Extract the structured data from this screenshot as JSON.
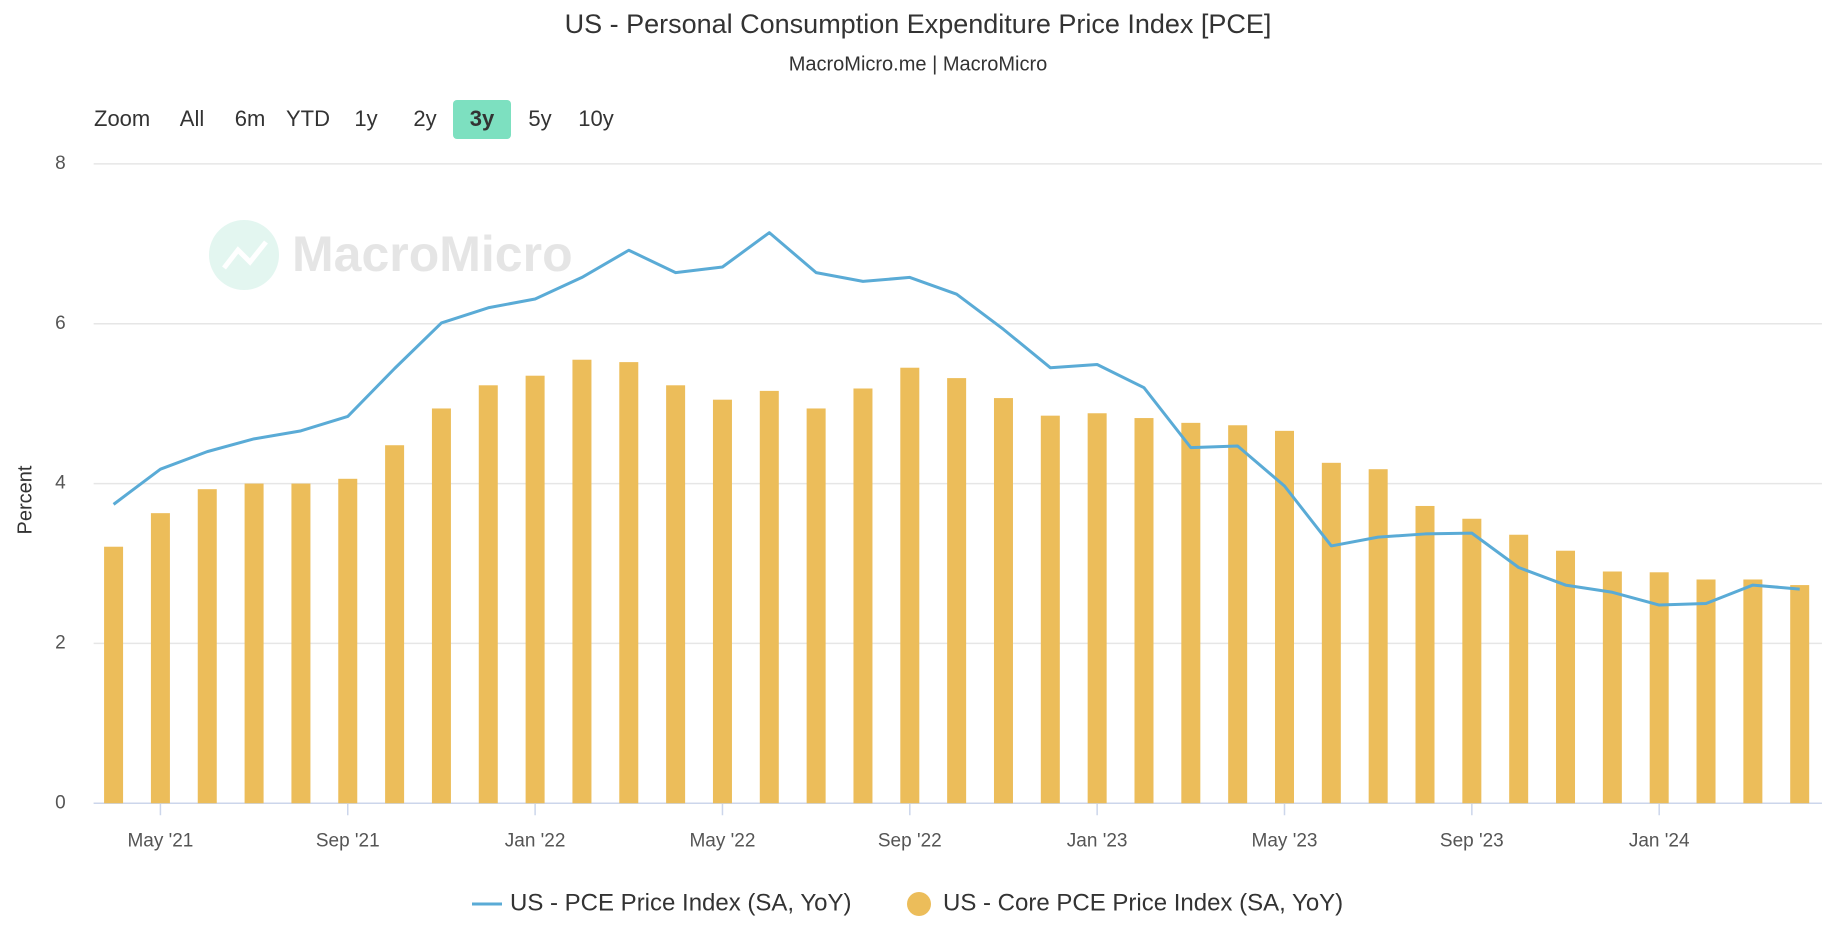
{
  "chart_data": {
    "type": "bar_line",
    "title": "US - Personal Consumption Expenditure Price Index [PCE]",
    "subtitle": "MacroMicro.me | MacroMicro",
    "watermark": "MacroMicro",
    "range_selector": {
      "label": "Zoom",
      "buttons": [
        "All",
        "6m",
        "YTD",
        "1y",
        "2y",
        "3y",
        "5y",
        "10y"
      ],
      "selected": 5
    },
    "y_label": "Percent",
    "categories": [
      null,
      "May '21",
      null,
      null,
      null,
      "Sep '21",
      null,
      null,
      null,
      "Jan '22",
      null,
      null,
      null,
      "May '22",
      null,
      null,
      null,
      "Sep '22",
      null,
      null,
      null,
      "Jan '23",
      null,
      null,
      null,
      "May '23",
      null,
      null,
      null,
      "Sep '23",
      null,
      null,
      null,
      "Jan '24",
      null,
      null,
      null
    ],
    "series": [
      {
        "name": "US - PCE Price Index (SA, YoY)",
        "kind": "line",
        "color": "#5aabd6",
        "values": [
          3.74,
          4.18,
          4.4,
          4.56,
          4.66,
          4.84,
          5.44,
          6.01,
          6.2,
          6.31,
          6.58,
          6.92,
          6.64,
          6.71,
          7.14,
          6.64,
          6.53,
          6.58,
          6.37,
          5.93,
          5.45,
          5.49,
          5.2,
          4.45,
          4.47,
          3.97,
          3.22,
          3.33,
          3.37,
          3.38,
          2.95,
          2.73,
          2.64,
          2.48,
          2.5,
          2.73,
          2.68
        ]
      },
      {
        "name": "US - Core PCE Price Index (SA, YoY)",
        "kind": "bar",
        "color": "#ecbd5a",
        "values": [
          3.21,
          3.63,
          3.93,
          4.0,
          4.0,
          4.06,
          4.48,
          4.94,
          5.23,
          5.35,
          5.55,
          5.52,
          5.23,
          5.05,
          5.16,
          4.94,
          5.19,
          5.45,
          5.32,
          5.07,
          4.85,
          4.88,
          4.82,
          4.76,
          4.73,
          4.66,
          4.26,
          4.18,
          3.72,
          3.56,
          3.36,
          3.16,
          2.9,
          2.89,
          2.8,
          2.8,
          2.73
        ]
      }
    ],
    "ylim": [
      0,
      8
    ],
    "yticks": [
      0,
      2,
      4,
      6,
      8
    ],
    "grid": true
  }
}
